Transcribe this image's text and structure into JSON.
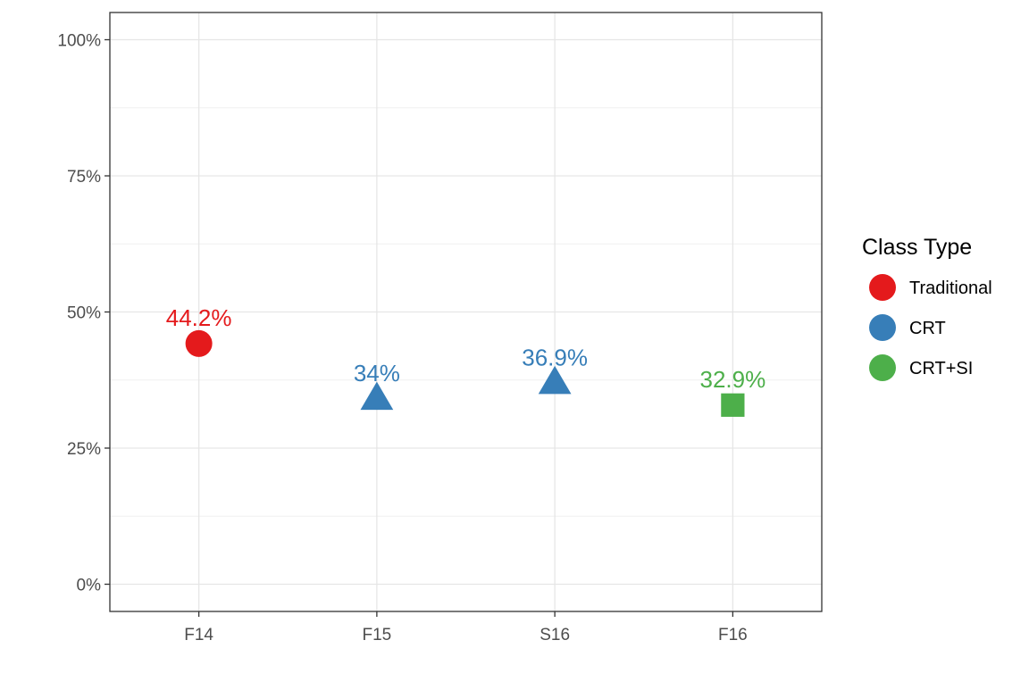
{
  "chart_data": {
    "type": "scatter",
    "categories": [
      "F14",
      "F15",
      "S16",
      "F16"
    ],
    "points": [
      {
        "x": "F14",
        "y": 44.2,
        "label": "44.2%",
        "group": "Traditional"
      },
      {
        "x": "F15",
        "y": 34,
        "label": "34%",
        "group": "CRT"
      },
      {
        "x": "S16",
        "y": 36.9,
        "label": "36.9%",
        "group": "CRT"
      },
      {
        "x": "F16",
        "y": 32.9,
        "label": "32.9%",
        "group": "CRT+SI"
      }
    ],
    "groups": [
      {
        "name": "Traditional",
        "color": "#E41A1C",
        "shape": "circle"
      },
      {
        "name": "CRT",
        "color": "#377EB8",
        "shape": "triangle"
      },
      {
        "name": "CRT+SI",
        "color": "#4DAF4A",
        "shape": "square"
      }
    ],
    "legend_title": "Class Type",
    "legend_position": "right",
    "y_ticks": [
      0,
      25,
      50,
      75,
      100
    ],
    "y_tick_labels": [
      "0%",
      "25%",
      "50%",
      "75%",
      "100%"
    ],
    "ylim": [
      -5,
      105
    ],
    "grid": true,
    "title": "",
    "xlabel": "",
    "ylabel": ""
  }
}
